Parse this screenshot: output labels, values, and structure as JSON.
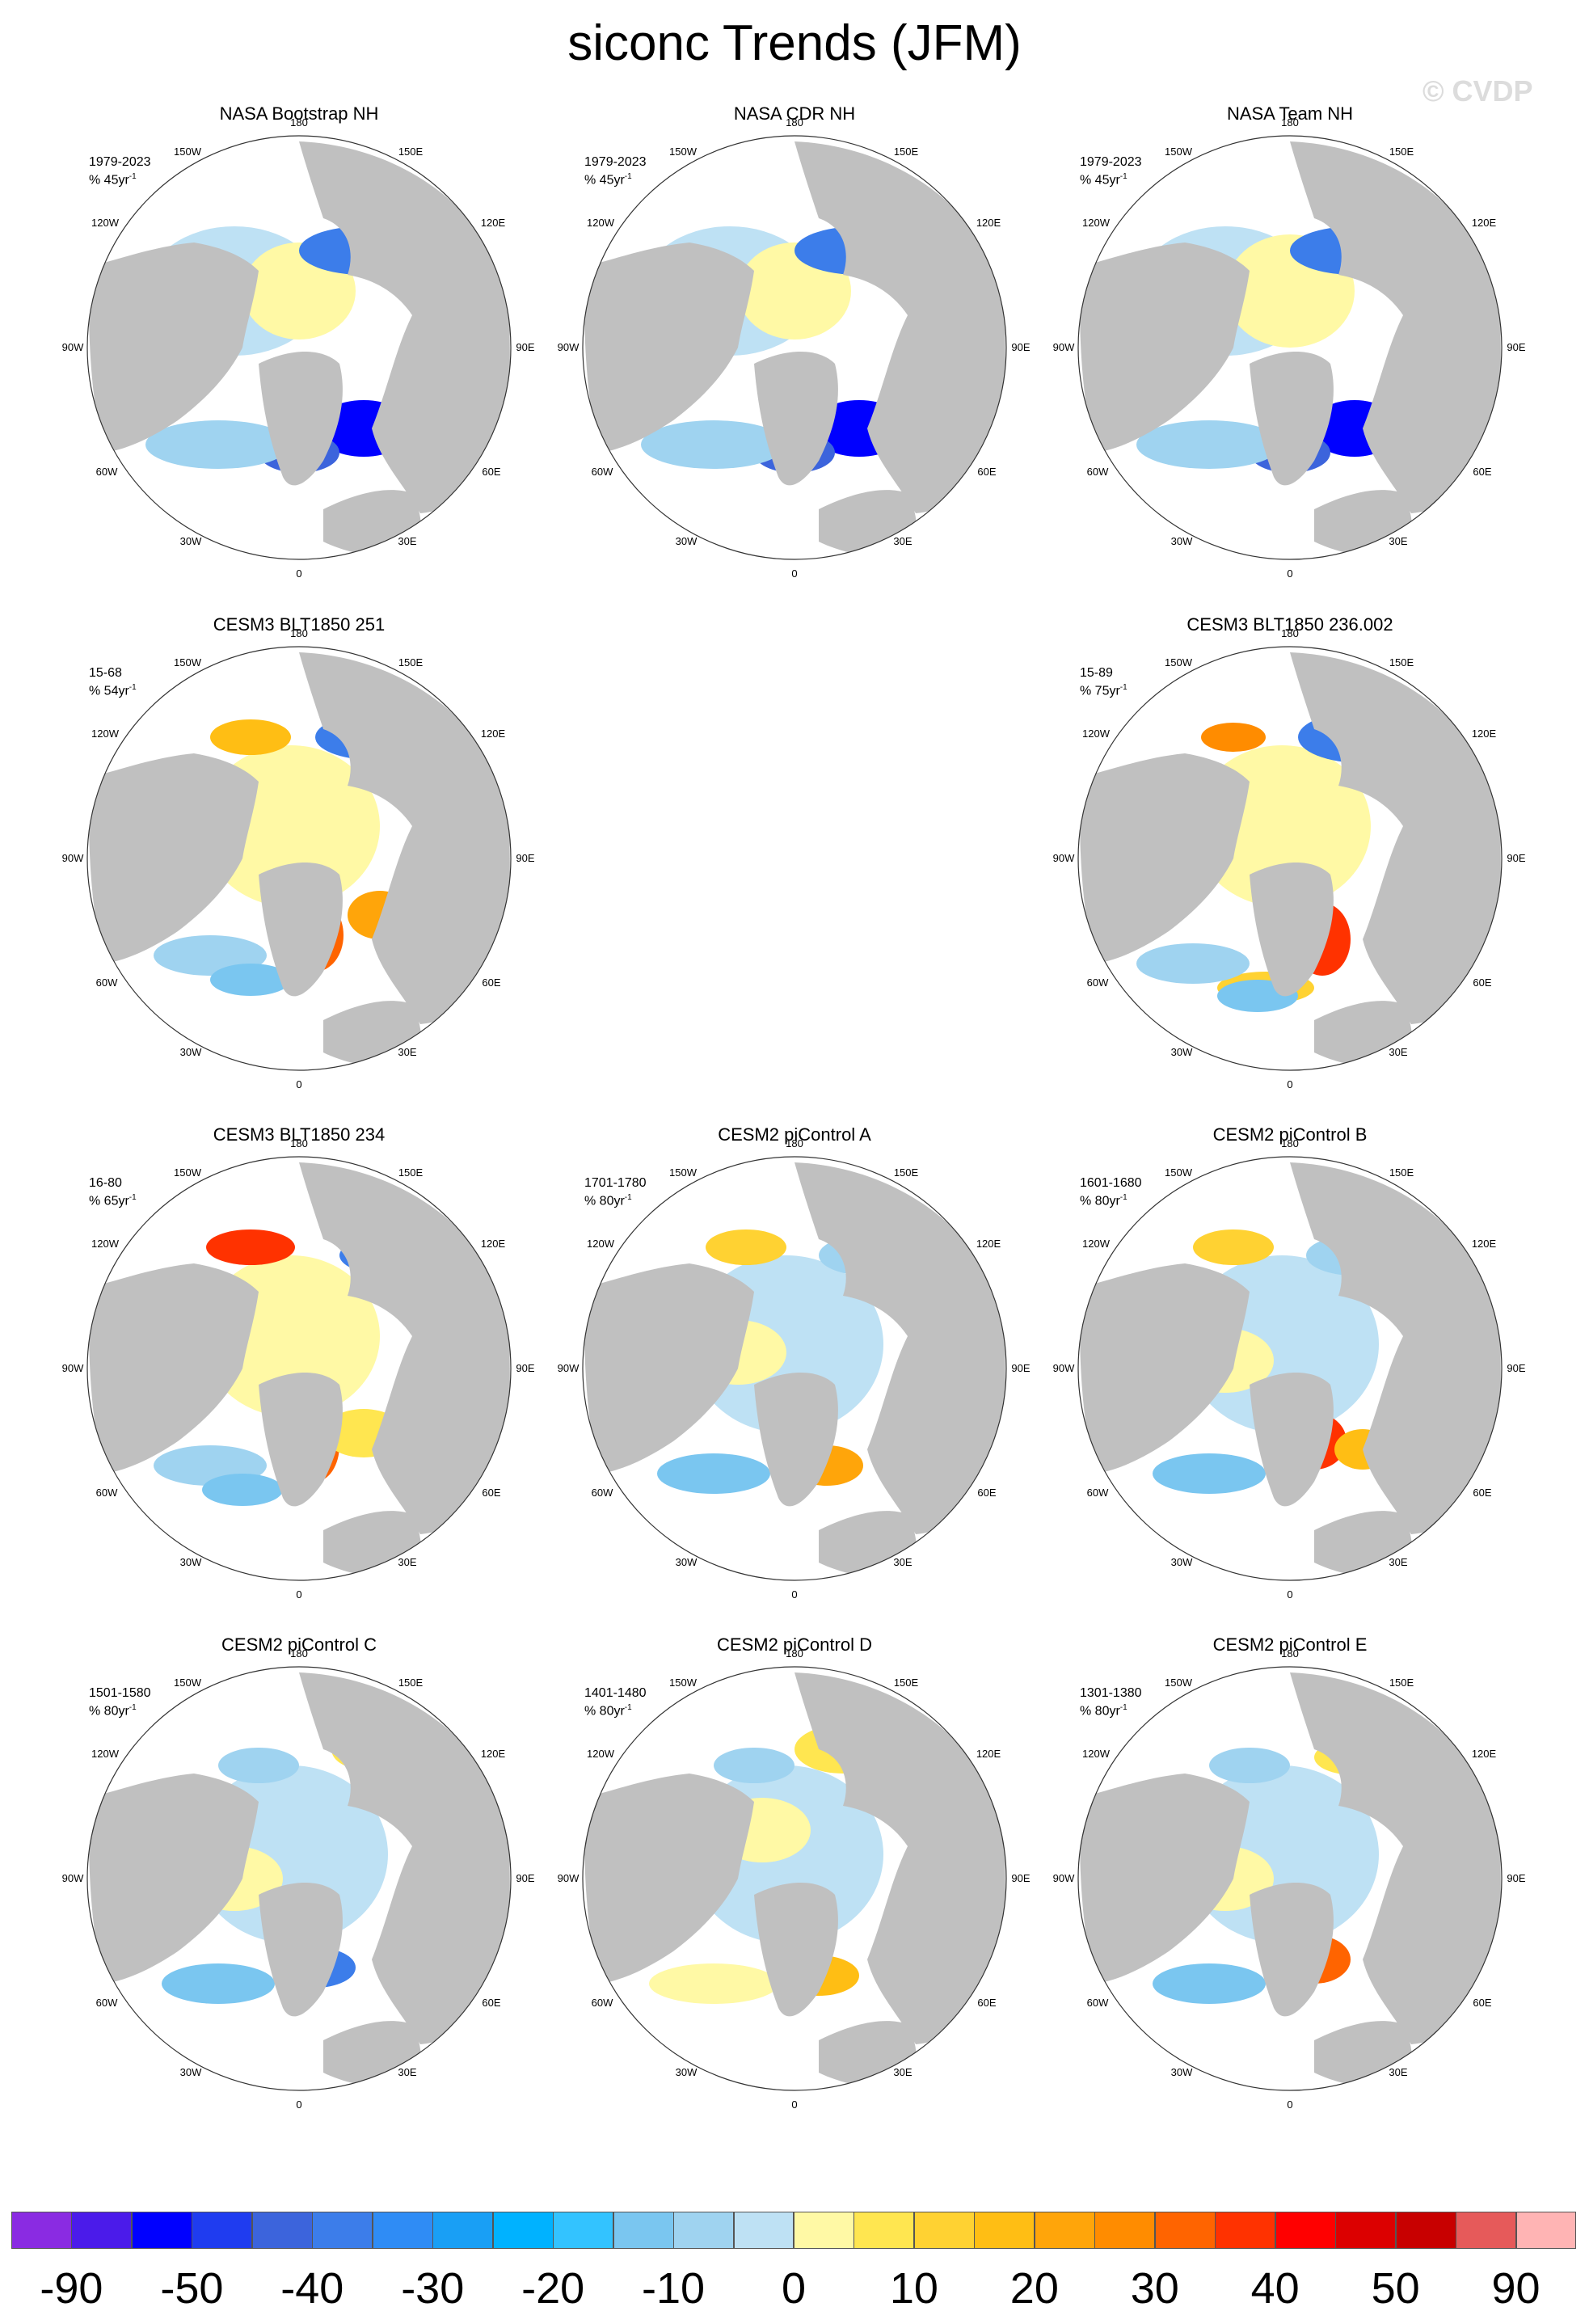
{
  "title": "siconc Trends (JFM)",
  "watermark": "© CVDP",
  "longitude_labels": {
    "top": "180",
    "bottom": "0",
    "ul": "150W",
    "ur": "150E",
    "lu": "120W",
    "ru": "120E",
    "l": "90W",
    "r": "90E",
    "ll": "60W",
    "rl": "60E",
    "bl": "30W",
    "br": "30E"
  },
  "panels": [
    {
      "title": "NASA Bootstrap NH",
      "period": "1979-2023",
      "trend_unit": "% 45yr",
      "unit_exp": "-1"
    },
    {
      "title": "NASA CDR NH",
      "period": "1979-2023",
      "trend_unit": "% 45yr",
      "unit_exp": "-1"
    },
    {
      "title": "NASA Team NH",
      "period": "1979-2023",
      "trend_unit": "% 45yr",
      "unit_exp": "-1"
    },
    {
      "title": "CESM3 BLT1850 251",
      "period": "15-68",
      "trend_unit": "% 54yr",
      "unit_exp": "-1"
    },
    {
      "title": "CESM3 BLT1850 236.002",
      "period": "15-89",
      "trend_unit": "% 75yr",
      "unit_exp": "-1"
    },
    {
      "title": "CESM3 BLT1850 234",
      "period": "16-80",
      "trend_unit": "% 65yr",
      "unit_exp": "-1"
    },
    {
      "title": "CESM2 piControl A",
      "period": "1701-1780",
      "trend_unit": "% 80yr",
      "unit_exp": "-1"
    },
    {
      "title": "CESM2 piControl B",
      "period": "1601-1680",
      "trend_unit": "% 80yr",
      "unit_exp": "-1"
    },
    {
      "title": "CESM2 piControl C",
      "period": "1501-1580",
      "trend_unit": "% 80yr",
      "unit_exp": "-1"
    },
    {
      "title": "CESM2 piControl D",
      "period": "1401-1480",
      "trend_unit": "% 80yr",
      "unit_exp": "-1"
    },
    {
      "title": "CESM2 piControl E",
      "period": "1301-1380",
      "trend_unit": "% 80yr",
      "unit_exp": "-1"
    }
  ],
  "colorbar": {
    "colors": [
      "#8a2be2",
      "#4b1bea",
      "#0000ff",
      "#1f3cf0",
      "#3c64dc",
      "#3c7dea",
      "#2f8cf5",
      "#199ff5",
      "#00b2ff",
      "#33c3ff",
      "#7ac6f0",
      "#9fd3f0",
      "#bee1f4",
      "#fff9a5",
      "#ffe650",
      "#ffd232",
      "#ffbe14",
      "#ffa50a",
      "#ff8c00",
      "#ff6400",
      "#ff3200",
      "#ff0000",
      "#dc0000",
      "#c80000",
      "#e65a5a",
      "#ffb4b4"
    ],
    "labels": [
      "-90",
      "-50",
      "-40",
      "-30",
      "-20",
      "-10",
      "0",
      "10",
      "20",
      "30",
      "40",
      "50",
      "90"
    ]
  }
}
